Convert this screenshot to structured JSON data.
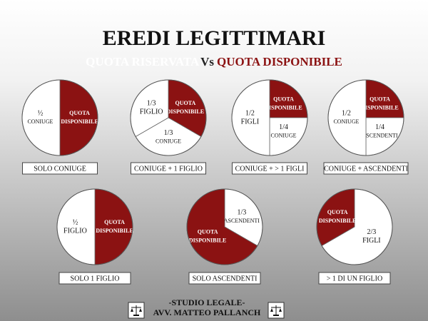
{
  "header": {
    "title": "EREDI LEGITTIMARI",
    "subtitle": [
      {
        "text": "QUOTA RISERVATA",
        "color": "#ffffff"
      },
      {
        "text": "Vs",
        "color": "#222222"
      },
      {
        "text": "QUOTA DISPONIBILE",
        "color": "#8b1212"
      }
    ]
  },
  "pies": [
    {
      "caption": "SOLO CONIUGE",
      "slices": [
        {
          "lines": [
            "QUOTA",
            "DISPONIBILE"
          ],
          "value": 0.5,
          "color": "#8b1212"
        },
        {
          "lines": [
            "½",
            "CONIUGE"
          ],
          "value": 0.5,
          "color": "#ffffff"
        }
      ]
    },
    {
      "caption": "CONIUGE + 1 FIGLIO",
      "slices": [
        {
          "lines": [
            "QUOTA",
            "DISPONIBILE"
          ],
          "value": 0.3333,
          "color": "#8b1212"
        },
        {
          "lines": [
            "1/3",
            "CONIUGE"
          ],
          "value": 0.3333,
          "color": "#ffffff"
        },
        {
          "lines": [
            "1/3",
            "FIGLIO"
          ],
          "value": 0.3333,
          "color": "#ffffff"
        }
      ]
    },
    {
      "caption": "CONIUGE + > 1 FIGLI",
      "slices": [
        {
          "lines": [
            "QUOTA",
            "DISPONIBILE"
          ],
          "value": 0.25,
          "color": "#8b1212"
        },
        {
          "lines": [
            "1/4",
            "CONIUGE"
          ],
          "value": 0.25,
          "color": "#ffffff"
        },
        {
          "lines": [
            "1/2",
            "FIGLI"
          ],
          "value": 0.5,
          "color": "#ffffff"
        }
      ]
    },
    {
      "caption": "CONIUGE + ASCENDENTI",
      "slices": [
        {
          "lines": [
            "QUOTA",
            "DISPONIBILE"
          ],
          "value": 0.25,
          "color": "#8b1212"
        },
        {
          "lines": [
            "1/4",
            "ASCENDENTI"
          ],
          "value": 0.25,
          "color": "#ffffff"
        },
        {
          "lines": [
            "1/2",
            "CONIUGE"
          ],
          "value": 0.5,
          "color": "#ffffff"
        }
      ]
    },
    {
      "caption": "SOLO 1 FIGLIO",
      "slices": [
        {
          "lines": [
            "QUOTA",
            "DISPONIBILE"
          ],
          "value": 0.5,
          "color": "#8b1212"
        },
        {
          "lines": [
            "½",
            "FIGLIO"
          ],
          "value": 0.5,
          "color": "#ffffff"
        }
      ]
    },
    {
      "caption": "SOLO ASCENDENTI",
      "slices": [
        {
          "lines": [
            "1/3",
            "ASCENDENTI"
          ],
          "value": 0.3333,
          "color": "#ffffff"
        },
        {
          "lines": [
            "QUOTA",
            "DISPONIBILE"
          ],
          "value": 0.6667,
          "color": "#8b1212"
        }
      ]
    },
    {
      "caption": "> 1 DI UN FIGLIO",
      "slices": [
        {
          "lines": [
            "2/3",
            "FIGLI"
          ],
          "value": 0.6667,
          "color": "#ffffff"
        },
        {
          "lines": [
            "QUOTA",
            "DISPONIBILE"
          ],
          "value": 0.3333,
          "color": "#8b1212"
        }
      ]
    }
  ],
  "footer": {
    "lines": [
      "-STUDIO LEGALE-",
      "AVV. MATTEO PALLANCH"
    ]
  }
}
